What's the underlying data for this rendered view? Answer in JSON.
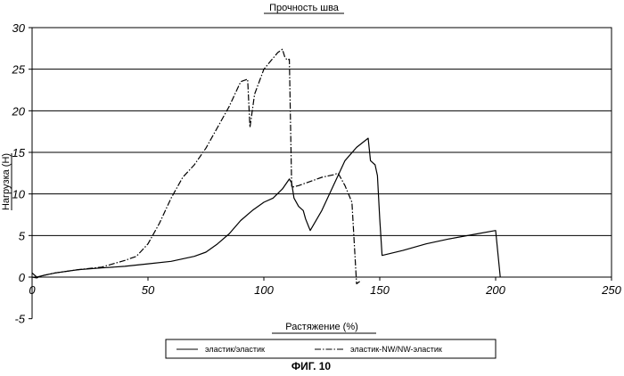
{
  "chart_data": {
    "type": "line",
    "title": "Прочность шва",
    "xlabel": "Растяжение (%)",
    "ylabel": "Нагрузка (Н)",
    "xlim": [
      0,
      250
    ],
    "ylim": [
      -5,
      30
    ],
    "x_ticks": [
      "0",
      "50",
      "100",
      "150",
      "200",
      "250"
    ],
    "y_ticks": [
      "30",
      "25",
      "20",
      "15",
      "10",
      "5",
      "0",
      "-5"
    ],
    "grid": "horizontal",
    "legend_position": "bottom",
    "caption": "ФИГ. 10",
    "series": [
      {
        "name": "эластик/эластик",
        "style": "solid",
        "points": [
          [
            0,
            0.5
          ],
          [
            2,
            0
          ],
          [
            5,
            0.2
          ],
          [
            10,
            0.5
          ],
          [
            20,
            0.9
          ],
          [
            30,
            1.1
          ],
          [
            40,
            1.3
          ],
          [
            50,
            1.6
          ],
          [
            60,
            1.9
          ],
          [
            70,
            2.5
          ],
          [
            75,
            3.0
          ],
          [
            80,
            4.0
          ],
          [
            85,
            5.2
          ],
          [
            90,
            6.8
          ],
          [
            95,
            8.0
          ],
          [
            100,
            9.0
          ],
          [
            104,
            9.5
          ],
          [
            108,
            10.6
          ],
          [
            111,
            11.8
          ],
          [
            112,
            11.3
          ],
          [
            113,
            9.5
          ],
          [
            115,
            8.5
          ],
          [
            117,
            8.0
          ],
          [
            118,
            7.0
          ],
          [
            120,
            5.6
          ],
          [
            125,
            8.0
          ],
          [
            130,
            11.0
          ],
          [
            135,
            14.0
          ],
          [
            140,
            15.6
          ],
          [
            145,
            16.7
          ],
          [
            146,
            14.0
          ],
          [
            148,
            13.5
          ],
          [
            149,
            12.2
          ],
          [
            150,
            7.0
          ],
          [
            151,
            2.6
          ],
          [
            160,
            3.2
          ],
          [
            170,
            4.0
          ],
          [
            180,
            4.6
          ],
          [
            190,
            5.1
          ],
          [
            200,
            5.6
          ],
          [
            202,
            0
          ]
        ]
      },
      {
        "name": "эластик-NW/NW-эластик",
        "style": "dash-dot",
        "points": [
          [
            0,
            0
          ],
          [
            2,
            -0.1
          ],
          [
            5,
            0.2
          ],
          [
            10,
            0.5
          ],
          [
            20,
            0.9
          ],
          [
            30,
            1.2
          ],
          [
            40,
            2.0
          ],
          [
            45,
            2.5
          ],
          [
            50,
            4.0
          ],
          [
            55,
            6.5
          ],
          [
            60,
            9.5
          ],
          [
            65,
            12.0
          ],
          [
            70,
            13.5
          ],
          [
            75,
            15.5
          ],
          [
            80,
            18.0
          ],
          [
            85,
            20.5
          ],
          [
            90,
            23.5
          ],
          [
            93,
            23.8
          ],
          [
            94,
            18.0
          ],
          [
            96,
            22.0
          ],
          [
            100,
            25.0
          ],
          [
            103,
            26.0
          ],
          [
            106,
            27.0
          ],
          [
            108,
            27.4
          ],
          [
            109,
            26.5
          ],
          [
            110,
            26.1
          ],
          [
            111,
            26.2
          ],
          [
            112,
            10.8
          ],
          [
            115,
            11.0
          ],
          [
            120,
            11.5
          ],
          [
            125,
            12.0
          ],
          [
            130,
            12.3
          ],
          [
            132,
            12.5
          ],
          [
            135,
            11.0
          ],
          [
            138,
            9.0
          ],
          [
            140,
            -0.8
          ],
          [
            142,
            -0.4
          ]
        ]
      }
    ]
  },
  "legend": {
    "solid_label": "эластик/эластик",
    "dashdot_label": "эластик-NW/NW-эластик"
  }
}
